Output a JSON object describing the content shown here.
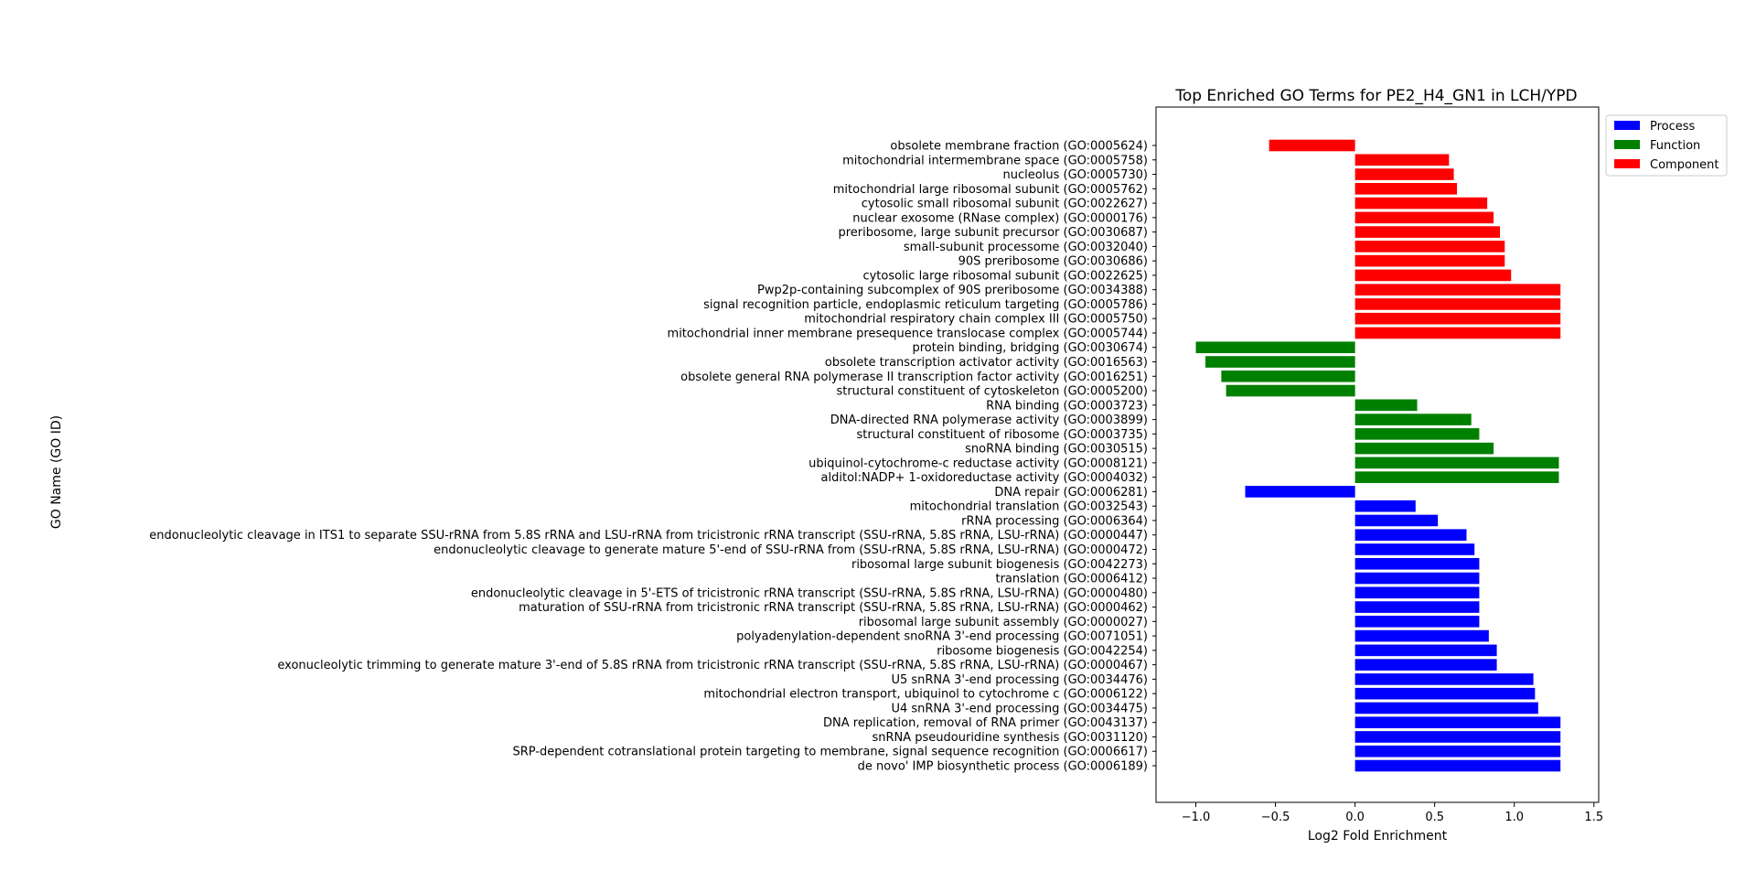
{
  "chart_data": {
    "type": "bar",
    "orientation": "horizontal",
    "title": "Top Enriched GO Terms for PE2_H4_GN1 in LCH/YPD",
    "xlabel": "Log2 Fold Enrichment",
    "ylabel": "GO Name (GO ID)",
    "xlim": [
      -1.25,
      1.53
    ],
    "xticks": [
      -1.0,
      -0.5,
      0.0,
      0.5,
      1.0,
      1.5
    ],
    "xtick_labels": [
      "−1.0",
      "−0.5",
      "0.0",
      "0.5",
      "1.0",
      "1.5"
    ],
    "grid": false,
    "legend_position": "outside top-right",
    "legend": [
      {
        "name": "Process",
        "color": "#0000ff"
      },
      {
        "name": "Function",
        "color": "#008000"
      },
      {
        "name": "Component",
        "color": "#ff0000"
      }
    ],
    "categories": [
      "de novo' IMP biosynthetic process (GO:0006189)",
      "SRP-dependent cotranslational protein targeting to membrane, signal sequence recognition (GO:0006617)",
      "snRNA pseudouridine synthesis (GO:0031120)",
      "DNA replication, removal of RNA primer (GO:0043137)",
      "U4 snRNA 3'-end processing (GO:0034475)",
      "mitochondrial electron transport, ubiquinol to cytochrome c (GO:0006122)",
      "U5 snRNA 3'-end processing (GO:0034476)",
      "exonucleolytic trimming to generate mature 3'-end of 5.8S rRNA from tricistronic rRNA transcript (SSU-rRNA, 5.8S rRNA, LSU-rRNA) (GO:0000467)",
      "ribosome biogenesis (GO:0042254)",
      "polyadenylation-dependent snoRNA 3'-end processing (GO:0071051)",
      "ribosomal large subunit assembly (GO:0000027)",
      "maturation of SSU-rRNA from tricistronic rRNA transcript (SSU-rRNA, 5.8S rRNA, LSU-rRNA) (GO:0000462)",
      "endonucleolytic cleavage in 5'-ETS of tricistronic rRNA transcript (SSU-rRNA, 5.8S rRNA, LSU-rRNA) (GO:0000480)",
      "translation (GO:0006412)",
      "ribosomal large subunit biogenesis (GO:0042273)",
      "endonucleolytic cleavage to generate mature 5'-end of SSU-rRNA from (SSU-rRNA, 5.8S rRNA, LSU-rRNA) (GO:0000472)",
      "endonucleolytic cleavage in ITS1 to separate SSU-rRNA from 5.8S rRNA and LSU-rRNA from tricistronic rRNA transcript (SSU-rRNA, 5.8S rRNA, LSU-rRNA) (GO:0000447)",
      "rRNA processing (GO:0006364)",
      "mitochondrial translation (GO:0032543)",
      "DNA repair (GO:0006281)",
      "alditol:NADP+ 1-oxidoreductase activity (GO:0004032)",
      "ubiquinol-cytochrome-c reductase activity (GO:0008121)",
      "snoRNA binding (GO:0030515)",
      "structural constituent of ribosome (GO:0003735)",
      "DNA-directed RNA polymerase activity (GO:0003899)",
      "RNA binding (GO:0003723)",
      "structural constituent of cytoskeleton (GO:0005200)",
      "obsolete general RNA polymerase II transcription factor activity (GO:0016251)",
      "obsolete transcription activator activity (GO:0016563)",
      "protein binding, bridging (GO:0030674)",
      "mitochondrial inner membrane presequence translocase complex (GO:0005744)",
      "mitochondrial respiratory chain complex III (GO:0005750)",
      "signal recognition particle, endoplasmic reticulum targeting (GO:0005786)",
      "Pwp2p-containing subcomplex of 90S preribosome (GO:0034388)",
      "cytosolic large ribosomal subunit (GO:0022625)",
      "90S preribosome (GO:0030686)",
      "small-subunit processome (GO:0032040)",
      "preribosome, large subunit precursor (GO:0030687)",
      "nuclear exosome (RNase complex) (GO:0000176)",
      "cytosolic small ribosomal subunit (GO:0022627)",
      "mitochondrial large ribosomal subunit (GO:0005762)",
      "nucleolus (GO:0005730)",
      "mitochondrial intermembrane space (GO:0005758)",
      "obsolete membrane fraction (GO:0005624)"
    ],
    "values": [
      1.29,
      1.29,
      1.29,
      1.29,
      1.15,
      1.13,
      1.12,
      0.89,
      0.89,
      0.84,
      0.78,
      0.78,
      0.78,
      0.78,
      0.78,
      0.75,
      0.7,
      0.52,
      0.38,
      -0.69,
      1.28,
      1.28,
      0.87,
      0.78,
      0.73,
      0.39,
      -0.81,
      -0.84,
      -0.94,
      -1.0,
      1.29,
      1.29,
      1.29,
      1.29,
      0.98,
      0.94,
      0.94,
      0.91,
      0.87,
      0.83,
      0.64,
      0.62,
      0.59,
      -0.54
    ],
    "groups": [
      "Process",
      "Process",
      "Process",
      "Process",
      "Process",
      "Process",
      "Process",
      "Process",
      "Process",
      "Process",
      "Process",
      "Process",
      "Process",
      "Process",
      "Process",
      "Process",
      "Process",
      "Process",
      "Process",
      "Process",
      "Function",
      "Function",
      "Function",
      "Function",
      "Function",
      "Function",
      "Function",
      "Function",
      "Function",
      "Function",
      "Component",
      "Component",
      "Component",
      "Component",
      "Component",
      "Component",
      "Component",
      "Component",
      "Component",
      "Component",
      "Component",
      "Component",
      "Component",
      "Component"
    ]
  }
}
